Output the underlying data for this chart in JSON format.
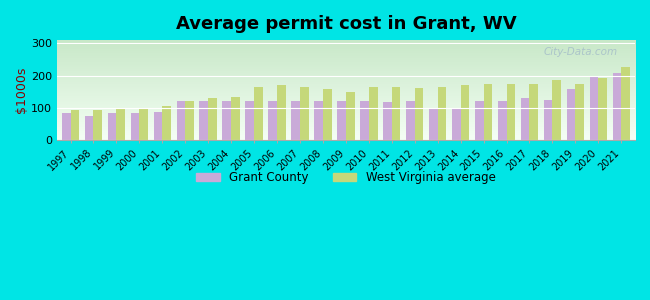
{
  "title": "Average permit cost in Grant, WV",
  "ylabel": "$1000s",
  "background_color": "#00e5e5",
  "years": [
    1997,
    1998,
    1999,
    2000,
    2001,
    2002,
    2003,
    2004,
    2005,
    2006,
    2007,
    2008,
    2009,
    2010,
    2011,
    2012,
    2013,
    2014,
    2015,
    2016,
    2017,
    2018,
    2019,
    2020,
    2021
  ],
  "grant_county": [
    85,
    75,
    85,
    85,
    88,
    122,
    120,
    120,
    122,
    120,
    122,
    120,
    120,
    120,
    118,
    120,
    100,
    97,
    120,
    120,
    130,
    125,
    158,
    200,
    207
  ],
  "wv_average": [
    92,
    92,
    95,
    100,
    105,
    122,
    130,
    133,
    165,
    170,
    165,
    158,
    148,
    165,
    165,
    160,
    163,
    170,
    175,
    175,
    175,
    185,
    175,
    192,
    225
  ],
  "grant_color": "#c9aad8",
  "wv_color": "#c5d87a",
  "bar_width": 0.38,
  "ylim": [
    0,
    310
  ],
  "yticks": [
    0,
    100,
    200,
    300
  ],
  "legend_grant": "Grant County",
  "legend_wv": "West Virginia average",
  "watermark": "City-Data.com",
  "plot_bg_top": "#c8e8c0",
  "plot_bg_bottom": "#f0faf0"
}
